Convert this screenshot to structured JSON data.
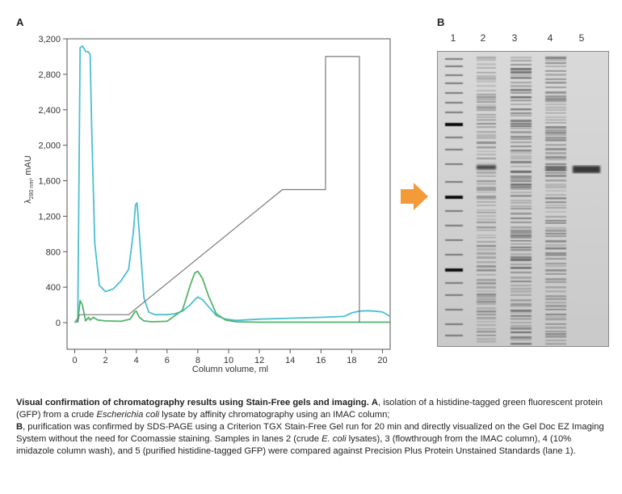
{
  "panel_a_label": "A",
  "panel_b_label": "B",
  "chart_data": {
    "type": "line",
    "xlabel": "Column volume, ml",
    "ylabel_main": "λ",
    "ylabel_sub": "280 nm",
    "ylabel_unit": ", mAU",
    "xlim": [
      -0.5,
      20.5
    ],
    "ylim": [
      -300,
      3200
    ],
    "x_ticks": [
      "0",
      "2",
      "4",
      "6",
      "8",
      "10",
      "12",
      "14",
      "16",
      "18",
      "20"
    ],
    "y_ticks": [
      "0",
      "400",
      "800",
      "1,200",
      "1,600",
      "2,000",
      "2,400",
      "2,800",
      "3,200"
    ],
    "series": [
      {
        "color": "#4bbfd0",
        "x": [
          0.0,
          0.2,
          0.35,
          0.5,
          0.7,
          0.9,
          1.0,
          1.1,
          1.3,
          1.6,
          2.0,
          2.5,
          3.0,
          3.5,
          3.8,
          3.95,
          4.05,
          4.2,
          4.5,
          4.8,
          5.2,
          6.0,
          6.5,
          7.0,
          7.5,
          7.8,
          8.0,
          8.3,
          8.7,
          9.2,
          9.8,
          10.5,
          12.0,
          14.0,
          16.0,
          17.5,
          18.0,
          18.5,
          19.0,
          19.5,
          20.0,
          20.5
        ],
        "y": [
          0,
          50,
          3100,
          3120,
          3060,
          3050,
          3020,
          2200,
          900,
          420,
          350,
          380,
          470,
          600,
          1000,
          1330,
          1350,
          1000,
          280,
          120,
          90,
          90,
          100,
          130,
          200,
          260,
          290,
          260,
          180,
          80,
          40,
          25,
          40,
          50,
          60,
          70,
          110,
          130,
          135,
          130,
          120,
          70
        ]
      },
      {
        "color": "#52b46a",
        "x": [
          0.0,
          0.2,
          0.35,
          0.5,
          0.7,
          0.9,
          1.0,
          1.2,
          1.5,
          2.0,
          3.0,
          3.6,
          3.9,
          4.0,
          4.2,
          4.5,
          5.0,
          6.0,
          7.0,
          7.5,
          7.8,
          8.0,
          8.3,
          8.7,
          9.2,
          9.8,
          10.5,
          12.0,
          15.0,
          18.0,
          20.0,
          20.5
        ],
        "y": [
          0,
          20,
          250,
          200,
          20,
          60,
          30,
          60,
          30,
          20,
          15,
          40,
          120,
          130,
          60,
          20,
          10,
          15,
          140,
          420,
          560,
          580,
          500,
          300,
          100,
          30,
          10,
          5,
          5,
          5,
          5,
          5
        ]
      },
      {
        "color": "#7a7a7a",
        "x": [
          0.2,
          0.3,
          0.5,
          3.5,
          13.5,
          16.3,
          16.3,
          18.5,
          18.5
        ],
        "y": [
          0,
          90,
          90,
          90,
          1500,
          1500,
          3000,
          3000,
          0
        ]
      }
    ]
  },
  "gel": {
    "lane_labels": [
      "1",
      "2",
      "3",
      "4",
      "5"
    ]
  },
  "caption": {
    "bold_intro": "Visual confirmation of chromatography results using Stain-Free gels and imaging.",
    "part_a_label": "A",
    "part_a_text_1": ", isolation of a histidine-tagged green fluorescent protein (GFP) from a crude ",
    "part_a_italic": "Escherichia coli",
    "part_a_text_2": " lysate by affinity chromatography using an IMAC column;",
    "part_b_label": "B",
    "part_b_text_1": ", purification was confirmed by SDS-PAGE using a Criterion TGX Stain-Free Gel run for 20 min and directly visualized on the Gel Doc EZ Imaging System without the need for Coomassie staining. Samples in lanes 2 (crude ",
    "part_b_italic": "E. coli",
    "part_b_text_2": " lysates), 3 (flowthrough from the IMAC column), 4 (10% imidazole column wash), and 5 (purified histidine-tagged GFP) were compared against Precision Plus Protein Unstained Standards (lane 1)."
  }
}
